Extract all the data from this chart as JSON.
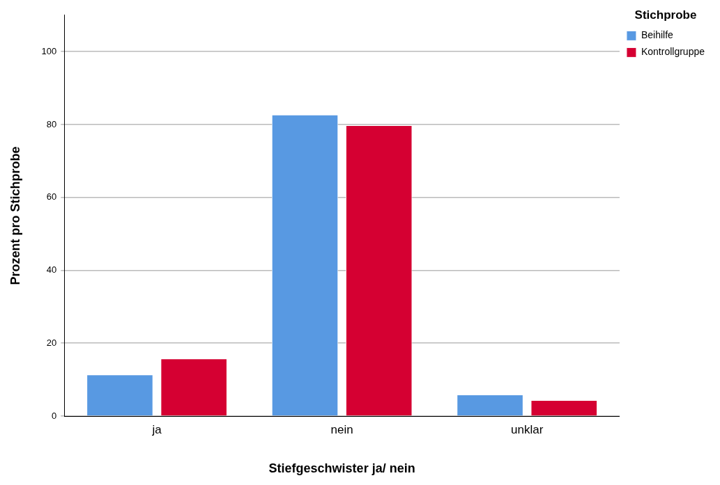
{
  "chart_data": {
    "type": "bar",
    "xlabel": "Stiefgeschwister ja/ nein",
    "ylabel": "Prozent pro Stichprobe",
    "legend_title": "Stichprobe",
    "categories": [
      "ja",
      "nein",
      "unklar"
    ],
    "series": [
      {
        "name": "Beihilfe",
        "color": "#5899e2",
        "values": [
          11.4,
          82.7,
          5.9
        ]
      },
      {
        "name": "Kontrollgruppe",
        "color": "#d50032",
        "values": [
          15.8,
          79.8,
          4.4
        ]
      }
    ],
    "ylim": [
      0,
      110
    ],
    "yticks": [
      0,
      20,
      40,
      60,
      80,
      100
    ],
    "grid": "y",
    "legend": "top right"
  }
}
